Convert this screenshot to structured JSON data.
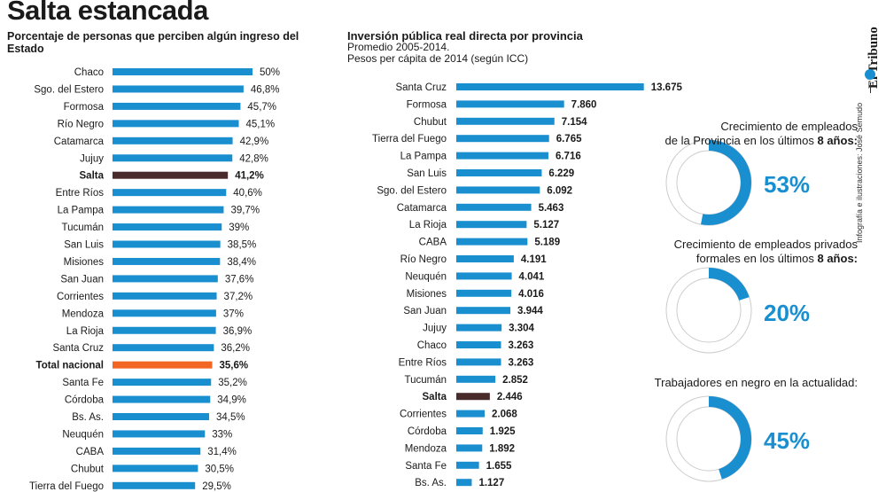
{
  "title": "Salta estancada",
  "left_subtitle": "Porcentaje de personas que perciben algún ingreso del Estado",
  "right_subtitle": "Inversión pública real directa por provincia",
  "right_subtitle_lines": [
    "Promedio 2005-2014.",
    "Pesos per cápita de 2014 (según ICC)"
  ],
  "credit": {
    "brand": "El Tribuno",
    "authors": "Infografía e ilustraciones: José Semudo"
  },
  "colors": {
    "bar": "#1a8fd0",
    "salta": "#4a2b2b",
    "total": "#f26522",
    "ring_track": "#ffffff",
    "ring_stroke": "#cccccc"
  },
  "rings": [
    {
      "title_lines": [
        "Crecimiento de empleados",
        "de la Provincia en los últimos "
      ],
      "bold": "8 años:",
      "label": "53%",
      "value": 53
    },
    {
      "title_lines": [
        "Crecimiento de empleados privados",
        "formales en los últimos "
      ],
      "bold": "8 años:",
      "label": "20%",
      "value": 20
    },
    {
      "title_lines": [
        "Trabajadores en negro en la actualidad:"
      ],
      "bold": "",
      "label": "45%",
      "value": 45
    }
  ],
  "chart_data": [
    {
      "type": "bar",
      "orientation": "horizontal",
      "title": "Porcentaje de personas que perciben algún ingreso del Estado",
      "categories": [
        "Chaco",
        "Sgo. del Estero",
        "Formosa",
        "Río Negro",
        "Catamarca",
        "Jujuy",
        "Salta",
        "Entre Ríos",
        "La Pampa",
        "Tucumán",
        "San Luis",
        "Misiones",
        "San Juan",
        "Corrientes",
        "Mendoza",
        "La Rioja",
        "Santa Cruz",
        "Total nacional",
        "Santa Fe",
        "Córdoba",
        "Bs. As.",
        "Neuquén",
        "CABA",
        "Chubut",
        "Tierra del Fuego"
      ],
      "values": [
        50,
        46.8,
        45.7,
        45.1,
        42.9,
        42.8,
        41.2,
        40.6,
        39.7,
        39,
        38.5,
        38.4,
        37.6,
        37.2,
        37,
        36.9,
        36.2,
        35.6,
        35.2,
        34.9,
        34.5,
        33,
        31.4,
        30.5,
        29.5
      ],
      "labels": [
        "50%",
        "46,8%",
        "45,7%",
        "45,1%",
        "42,9%",
        "42,8%",
        "41,2%",
        "40,6%",
        "39,7%",
        "39%",
        "38,5%",
        "38,4%",
        "37,6%",
        "37,2%",
        "37%",
        "36,9%",
        "36,2%",
        "35,6%",
        "35,2%",
        "34,9%",
        "34,5%",
        "33%",
        "31,4%",
        "30,5%",
        "29,5%"
      ],
      "highlight": {
        "Salta": "salta",
        "Total nacional": "total"
      }
    },
    {
      "type": "bar",
      "orientation": "horizontal",
      "title": "Inversión pública real directa por provincia",
      "categories": [
        "Santa Cruz",
        "Formosa",
        "Chubut",
        "Tierra del Fuego",
        "La Pampa",
        "San Luis",
        "Sgo. del Estero",
        "Catamarca",
        "La Rioja",
        "CABA",
        "Río Negro",
        "Neuquén",
        "Misiones",
        "San Juan",
        "Jujuy",
        "Chaco",
        "Entre Ríos",
        "Tucumán",
        "Salta",
        "Corrientes",
        "Córdoba",
        "Mendoza",
        "Santa Fe",
        "Bs. As."
      ],
      "values": [
        13675,
        7860,
        7154,
        6765,
        6716,
        6229,
        6092,
        5463,
        5127,
        5189,
        4191,
        4041,
        4016,
        3944,
        3304,
        3263,
        3263,
        2852,
        2446,
        2068,
        1925,
        1892,
        1655,
        1127
      ],
      "labels": [
        "13.675",
        "7.860",
        "7.154",
        "6.765",
        "6.716",
        "6.229",
        "6.092",
        "5.463",
        "5.127",
        "5.189",
        "4.191",
        "4.041",
        "4.016",
        "3.944",
        "3.304",
        "3.263",
        "3.263",
        "2.852",
        "2.446",
        "2.068",
        "1.925",
        "1.892",
        "1.655",
        "1.127"
      ],
      "highlight": {
        "Salta": "salta"
      }
    }
  ]
}
